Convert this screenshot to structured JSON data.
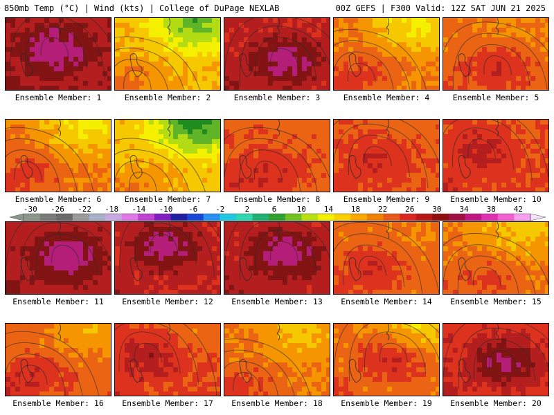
{
  "header": {
    "left": "850mb Temp (°C) | Wind (kts) | College of DuPage NEXLAB",
    "right": "00Z GEFS | F300 Valid: 12Z SAT JUN 21 2025"
  },
  "panel_label_prefix": "Ensemble Member: ",
  "members": [
    {
      "label": "Ensemble Member: 1",
      "base": 0.8,
      "hot": [
        0.45,
        0.4
      ],
      "heat": 0.45,
      "cool": 0.0
    },
    {
      "label": "Ensemble Member: 2",
      "base": 0.45,
      "hot": [
        0.2,
        0.85
      ],
      "heat": 0.25,
      "cool": 0.65
    },
    {
      "label": "Ensemble Member: 3",
      "base": 0.75,
      "hot": [
        0.55,
        0.55
      ],
      "heat": 0.55,
      "cool": 0.0
    },
    {
      "label": "Ensemble Member: 4",
      "base": 0.55,
      "hot": [
        0.25,
        0.75
      ],
      "heat": 0.3,
      "cool": 0.45
    },
    {
      "label": "Ensemble Member: 5",
      "base": 0.58,
      "hot": [
        0.5,
        0.65
      ],
      "heat": 0.35,
      "cool": 0.1
    },
    {
      "label": "Ensemble Member: 6",
      "base": 0.55,
      "hot": [
        0.2,
        0.7
      ],
      "heat": 0.3,
      "cool": 0.45
    },
    {
      "label": "Ensemble Member: 7",
      "base": 0.42,
      "hot": [
        0.25,
        0.85
      ],
      "heat": 0.25,
      "cool": 0.75
    },
    {
      "label": "Ensemble Member: 8",
      "base": 0.62,
      "hot": [
        0.4,
        0.7
      ],
      "heat": 0.3,
      "cool": 0.05
    },
    {
      "label": "Ensemble Member: 9",
      "base": 0.62,
      "hot": [
        0.4,
        0.5
      ],
      "heat": 0.25,
      "cool": 0.05
    },
    {
      "label": "Ensemble Member: 10",
      "base": 0.65,
      "hot": [
        0.35,
        0.4
      ],
      "heat": 0.3,
      "cool": 0.05
    },
    {
      "label": "Ensemble Member: 11",
      "base": 0.78,
      "hot": [
        0.55,
        0.45
      ],
      "heat": 0.55,
      "cool": 0.0
    },
    {
      "label": "Ensemble Member: 12",
      "base": 0.74,
      "hot": [
        0.45,
        0.3
      ],
      "heat": 0.6,
      "cool": 0.0
    },
    {
      "label": "Ensemble Member: 13",
      "base": 0.76,
      "hot": [
        0.55,
        0.4
      ],
      "heat": 0.55,
      "cool": 0.0
    },
    {
      "label": "Ensemble Member: 14",
      "base": 0.58,
      "hot": [
        0.35,
        0.6
      ],
      "heat": 0.35,
      "cool": 0.05
    },
    {
      "label": "Ensemble Member: 15",
      "base": 0.55,
      "hot": [
        0.4,
        0.75
      ],
      "heat": 0.25,
      "cool": 0.3
    },
    {
      "label": "Ensemble Member: 16",
      "base": 0.6,
      "hot": [
        0.25,
        0.7
      ],
      "heat": 0.3,
      "cool": 0.3
    },
    {
      "label": "Ensemble Member: 17",
      "base": 0.65,
      "hot": [
        0.3,
        0.4
      ],
      "heat": 0.35,
      "cool": 0.15
    },
    {
      "label": "Ensemble Member: 18",
      "base": 0.55,
      "hot": [
        0.2,
        0.8
      ],
      "heat": 0.25,
      "cool": 0.25
    },
    {
      "label": "Ensemble Member: 19",
      "base": 0.58,
      "hot": [
        0.55,
        0.4
      ],
      "heat": 0.45,
      "cool": 0.4
    },
    {
      "label": "Ensemble Member: 20",
      "base": 0.7,
      "hot": [
        0.55,
        0.5
      ],
      "heat": 0.6,
      "cool": 0.0
    }
  ],
  "colorbar": {
    "tick_labels": [
      "-30",
      "-26",
      "-22",
      "-18",
      "-14",
      "-10",
      "-6",
      "-2",
      "2",
      "6",
      "10",
      "14",
      "18",
      "22",
      "26",
      "30",
      "34",
      "38",
      "42"
    ],
    "colors": [
      "#8c968c",
      "#7a7a7a",
      "#6a6a6a",
      "#9a9a9a",
      "#a8b0c8",
      "#c8a8e0",
      "#e078e8",
      "#c040d0",
      "#8020c0",
      "#2020a0",
      "#1848d8",
      "#2890f0",
      "#20c8e0",
      "#30d8b0",
      "#20b070",
      "#30a030",
      "#70c020",
      "#b8e010",
      "#f0f000",
      "#f8d000",
      "#f8a800",
      "#f08000",
      "#e85818",
      "#d82820",
      "#b81818",
      "#901010",
      "#a01040",
      "#c01880",
      "#e030b0",
      "#f060d0",
      "#f8a0f0"
    ]
  },
  "palette": {
    "green_dark": "#1e8c1e",
    "green": "#60b428",
    "yellow_green": "#b4dc14",
    "yellow": "#f5f000",
    "gold": "#f5c800",
    "orange": "#f59600",
    "orange_red": "#eb6414",
    "red": "#dc321e",
    "dark_red": "#b41e1e",
    "maroon": "#821414",
    "magenta": "#b41e78"
  }
}
